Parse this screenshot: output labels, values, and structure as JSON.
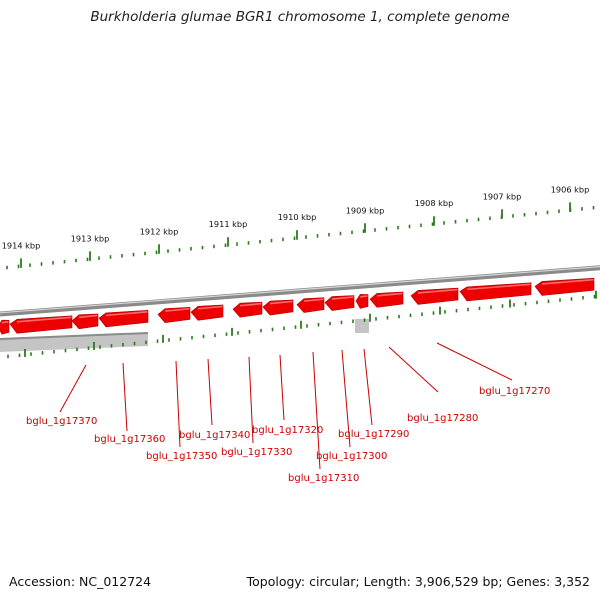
{
  "title": "Burkholderia glumae BGR1 chromosome 1, complete genome",
  "footer": {
    "accession": "Accession: NC_012724",
    "topology": "Topology: circular; Length: 3,906,529 bp; Genes: 3,352"
  },
  "colors": {
    "gene": "#ee0000",
    "gene_highlight": "#ff6a6a",
    "label": "#cc0000",
    "tick": "#2a7a1c",
    "backbone": "#8a8a8a",
    "shadow": "#c4c4c4"
  },
  "kbp_ticks": [
    "1914 kbp",
    "1913 kbp",
    "1912 kbp",
    "1911 kbp",
    "1910 kbp",
    "1909 kbp",
    "1908 kbp",
    "1907 kbp",
    "1906 kbp"
  ],
  "genes": [
    "bglu_1g17370",
    "bglu_1g17360",
    "bglu_1g17350",
    "bglu_1g17340",
    "bglu_1g17330",
    "bglu_1g17320",
    "bglu_1g17310",
    "bglu_1g17300",
    "bglu_1g17290",
    "bglu_1g17280",
    "bglu_1g17270"
  ]
}
